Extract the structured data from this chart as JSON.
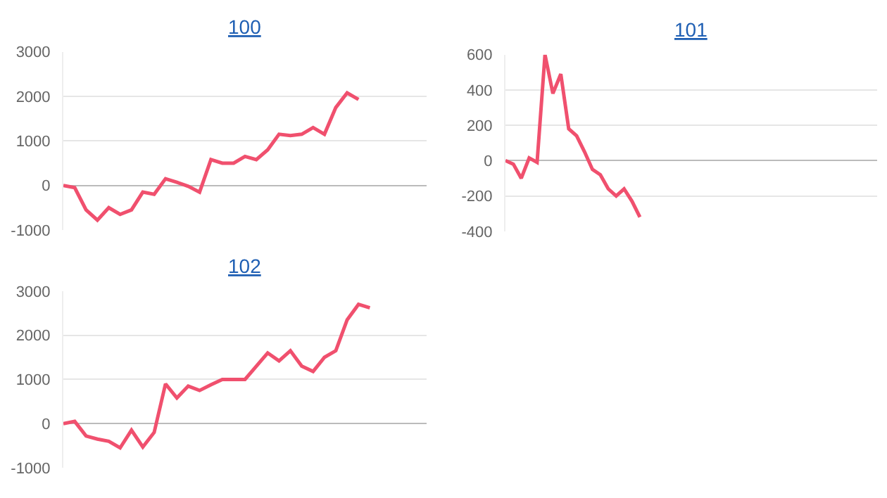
{
  "chart_data": [
    {
      "type": "line",
      "title": "100",
      "categories": [
        null,
        null,
        null,
        null,
        null,
        null,
        null,
        null,
        null,
        null,
        null,
        null,
        null,
        null,
        null,
        null,
        null,
        null,
        null,
        null,
        null,
        null,
        null,
        null,
        null,
        null,
        null,
        null,
        null,
        null,
        null,
        null,
        null
      ],
      "series": [
        {
          "color": "#f0506e",
          "values": [
            0,
            -50,
            -550,
            -780,
            -500,
            -650,
            -550,
            -150,
            -200,
            150,
            70,
            -20,
            -150,
            580,
            500,
            500,
            650,
            580,
            800,
            1150,
            1120,
            1150,
            1300,
            1150,
            1750,
            2080,
            1930,
            null,
            null,
            null,
            null,
            null,
            null
          ]
        }
      ],
      "ylim": [
        -1000,
        3000
      ],
      "yticks": [
        -1000,
        0,
        1000,
        2000,
        3000
      ],
      "grid": "y",
      "marker": "none",
      "line_style": "solid",
      "tick_labels": "y"
    },
    {
      "type": "line",
      "title": "101",
      "categories": [
        null,
        null,
        null,
        null,
        null,
        null,
        null,
        null,
        null,
        null,
        null,
        null,
        null,
        null,
        null,
        null,
        null,
        null,
        null,
        null,
        null,
        null,
        null,
        null,
        null,
        null,
        null,
        null,
        null,
        null,
        null,
        null,
        null,
        null,
        null,
        null,
        null,
        null,
        null,
        null,
        null,
        null,
        null,
        null,
        null,
        null,
        null,
        null
      ],
      "series": [
        {
          "color": "#f0506e",
          "values": [
            0,
            -20,
            -100,
            15,
            -10,
            600,
            380,
            490,
            180,
            140,
            50,
            -50,
            -80,
            -160,
            -200,
            -160,
            -230,
            -320,
            null,
            null,
            null,
            null,
            null,
            null,
            null,
            null,
            null,
            null,
            null,
            null,
            null,
            null,
            null,
            null,
            null,
            null,
            null,
            null,
            null,
            null,
            null,
            null,
            null,
            null,
            null,
            null,
            null,
            null
          ]
        }
      ],
      "ylim": [
        -400,
        600
      ],
      "yticks": [
        -400,
        -200,
        0,
        200,
        400,
        600
      ],
      "grid": "y",
      "marker": "none",
      "line_style": "solid",
      "tick_labels": "y"
    },
    {
      "type": "line",
      "title": "102",
      "categories": [
        null,
        null,
        null,
        null,
        null,
        null,
        null,
        null,
        null,
        null,
        null,
        null,
        null,
        null,
        null,
        null,
        null,
        null,
        null,
        null,
        null,
        null,
        null,
        null,
        null,
        null,
        null,
        null,
        null,
        null,
        null,
        null,
        null
      ],
      "series": [
        {
          "color": "#f0506e",
          "values": [
            0,
            50,
            -280,
            -350,
            -400,
            -550,
            -150,
            -530,
            -200,
            900,
            580,
            850,
            750,
            880,
            1000,
            1000,
            1000,
            1300,
            1600,
            1420,
            1650,
            1300,
            1180,
            1500,
            1650,
            2350,
            2700,
            2620,
            null,
            null,
            null,
            null,
            null
          ]
        }
      ],
      "ylim": [
        -1000,
        3000
      ],
      "yticks": [
        -1000,
        0,
        1000,
        2000,
        3000
      ],
      "grid": "y",
      "marker": "none",
      "line_style": "solid",
      "tick_labels": "y"
    }
  ]
}
